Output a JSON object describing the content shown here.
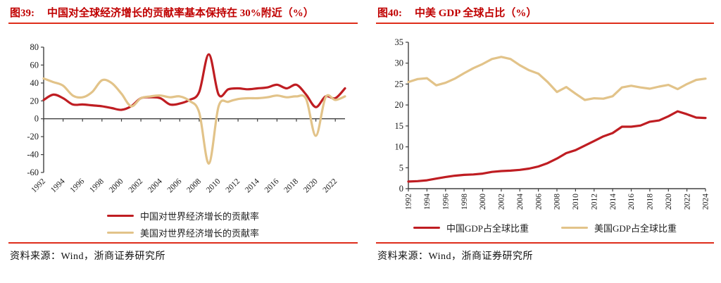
{
  "colors": {
    "title_red": "#C00000",
    "rule_red": "#DE2D1B",
    "china_red": "#BF1D22",
    "us_tan": "#E2C389",
    "axis": "#404040"
  },
  "panels": [
    {
      "title": {
        "tag": "图39:",
        "text": "中国对全球经济增长的贡献率基本保持在 30%附近（%）"
      },
      "legend": [
        {
          "name": "中国对世界经济增长的贡献率"
        },
        {
          "name": "美国对世界经济增长的贡献率"
        }
      ],
      "source": "资料来源：Wind，浙商证券研究所"
    },
    {
      "title": {
        "tag": "图40:",
        "text": "中美 GDP 全球占比（%）"
      },
      "legend": [
        {
          "name": "中国GDP占全球比重"
        },
        {
          "name": "美国GDP占全球比重"
        }
      ],
      "source": "资料来源：Wind，浙商证券研究所"
    }
  ],
  "chart_data": [
    {
      "type": "line",
      "title": "图39: 中国对全球经济增长的贡献率基本保持在 30%附近（%）",
      "x": [
        1992,
        1993,
        1994,
        1995,
        1996,
        1997,
        1998,
        1999,
        2000,
        2001,
        2002,
        2003,
        2004,
        2005,
        2006,
        2007,
        2008,
        2009,
        2010,
        2011,
        2012,
        2013,
        2014,
        2015,
        2016,
        2017,
        2018,
        2019,
        2020,
        2021,
        2022,
        2023
      ],
      "series": [
        {
          "name": "中国对世界经济增长的贡献率",
          "color": "#BF1D22",
          "values": [
            21,
            27,
            23,
            16,
            16,
            15,
            14,
            12,
            10,
            14,
            23,
            24,
            23,
            16,
            17,
            21,
            30,
            72,
            27,
            33,
            34,
            33,
            34,
            35,
            38,
            34,
            38,
            27,
            13,
            25,
            23,
            34
          ]
        },
        {
          "name": "美国对世界经济增长的贡献率",
          "color": "#E2C389",
          "values": [
            45,
            41,
            37,
            26,
            24,
            30,
            43,
            40,
            28,
            14,
            23,
            25,
            26,
            24,
            25,
            20,
            7,
            -50,
            14,
            19,
            22,
            23,
            23,
            24,
            26,
            24,
            25,
            22,
            -19,
            24,
            21,
            25
          ]
        }
      ],
      "ylim": [
        -60,
        80
      ],
      "yticks": [
        80,
        60,
        40,
        20,
        0,
        -20,
        -40,
        -60
      ],
      "xtick_labels": [
        "1992",
        "1994",
        "1996",
        "1998",
        "2000",
        "2002",
        "2004",
        "2006",
        "2008",
        "2010",
        "2012",
        "2014",
        "2016",
        "2018",
        "2020",
        "2022"
      ],
      "x_label_rotation": -45,
      "smooth": true,
      "grid": false,
      "legend_position": "bottom"
    },
    {
      "type": "line",
      "title": "图40: 中美 GDP 全球占比（%）",
      "x": [
        1992,
        1993,
        1994,
        1995,
        1996,
        1997,
        1998,
        1999,
        2000,
        2001,
        2002,
        2003,
        2004,
        2005,
        2006,
        2007,
        2008,
        2009,
        2010,
        2011,
        2012,
        2013,
        2014,
        2015,
        2016,
        2017,
        2018,
        2019,
        2020,
        2021,
        2022,
        2023,
        2024
      ],
      "series": [
        {
          "name": "中国GDP占全球比重",
          "color": "#BF1D22",
          "values": [
            1.7,
            1.8,
            2.0,
            2.4,
            2.8,
            3.1,
            3.3,
            3.4,
            3.6,
            4.0,
            4.2,
            4.3,
            4.5,
            4.8,
            5.3,
            6.1,
            7.2,
            8.5,
            9.2,
            10.3,
            11.4,
            12.5,
            13.3,
            14.8,
            14.8,
            15.1,
            16.0,
            16.3,
            17.3,
            18.5,
            17.8,
            17.0,
            16.9
          ]
        },
        {
          "name": "美国GDP占全球比重",
          "color": "#E2C389",
          "values": [
            25.5,
            26.2,
            26.4,
            24.7,
            25.3,
            26.3,
            27.6,
            28.8,
            29.8,
            31.0,
            31.5,
            31.0,
            29.5,
            28.3,
            27.5,
            25.5,
            23.1,
            24.3,
            22.7,
            21.2,
            21.6,
            21.5,
            22.1,
            24.2,
            24.6,
            24.2,
            23.9,
            24.4,
            24.8,
            23.8,
            25.0,
            26.0,
            26.3
          ]
        }
      ],
      "ylim": [
        0,
        35
      ],
      "yticks": [
        35,
        30,
        25,
        20,
        15,
        10,
        5,
        0
      ],
      "xtick_labels": [
        "1992",
        "1994",
        "1996",
        "1998",
        "2000",
        "2002",
        "2004",
        "2006",
        "2008",
        "2010",
        "2012",
        "2014",
        "2016",
        "2018",
        "2020",
        "2022",
        "2024"
      ],
      "x_label_rotation": -90,
      "smooth": false,
      "grid": false,
      "legend_position": "bottom"
    }
  ]
}
